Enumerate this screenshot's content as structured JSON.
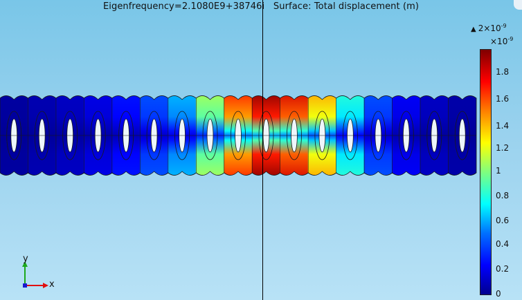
{
  "plot": {
    "title": "Eigenfrequency=2.1080E9+38746i   Surface: Total displacement (m)"
  },
  "colorbar": {
    "max_prefix": "2×10",
    "max_exp": "-9",
    "multiplier_prefix": "×10",
    "multiplier_exp": "-9",
    "ticks": [
      "1.8",
      "1.6",
      "1.4",
      "1.2",
      "1",
      "0.8",
      "0.6",
      "0.4",
      "0.2",
      "0"
    ],
    "colormap": "Rainbow",
    "colors": [
      "#00008f",
      "#0000ff",
      "#0070ff",
      "#00ffff",
      "#7fff7f",
      "#ffff00",
      "#ff7f00",
      "#ff0000",
      "#7f0000"
    ]
  },
  "beam": {
    "cells": 17,
    "cell_values": [
      0.02,
      0.04,
      0.06,
      0.1,
      0.15,
      0.22,
      0.32,
      0.55,
      0.85,
      1.0,
      0.92,
      0.72,
      0.42,
      0.22,
      0.12,
      0.06,
      0.03
    ]
  },
  "axis": {
    "y_label": "y",
    "x_label": "x"
  }
}
